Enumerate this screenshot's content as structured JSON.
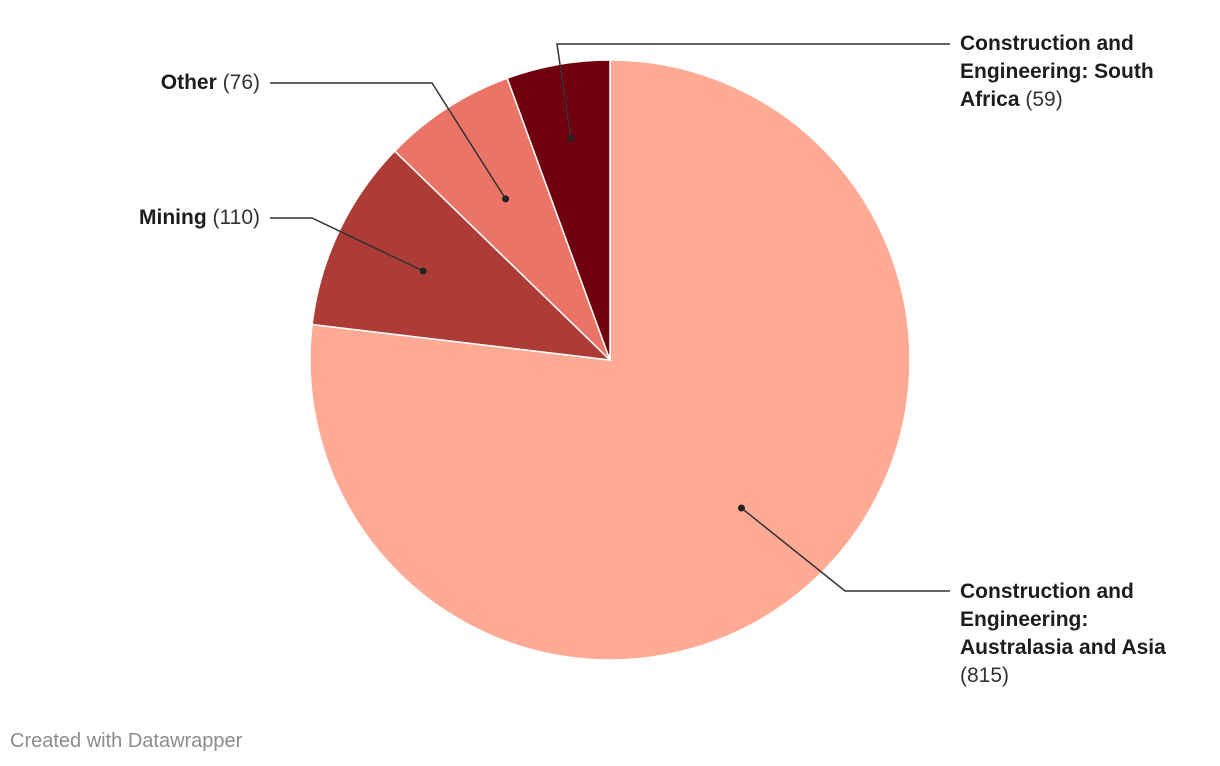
{
  "chart_data": {
    "type": "pie",
    "title": "",
    "slices": [
      {
        "label": "Construction and Engineering: Australasia and Asia",
        "value": 815,
        "value_text": "(815)",
        "color": "#ffaa95"
      },
      {
        "label": "Mining",
        "value": 110,
        "value_text": "(110)",
        "color": "#ad3b36"
      },
      {
        "label": "Other",
        "value": 76,
        "value_text": "(76)",
        "color": "#eb7466"
      },
      {
        "label": "Construction and Engineering: South Africa",
        "value": 59,
        "value_text": "(59)",
        "color": "#71000e"
      }
    ],
    "label_placement": "outside-with-leader-lines"
  },
  "footer": {
    "text": "Created with Datawrapper"
  }
}
